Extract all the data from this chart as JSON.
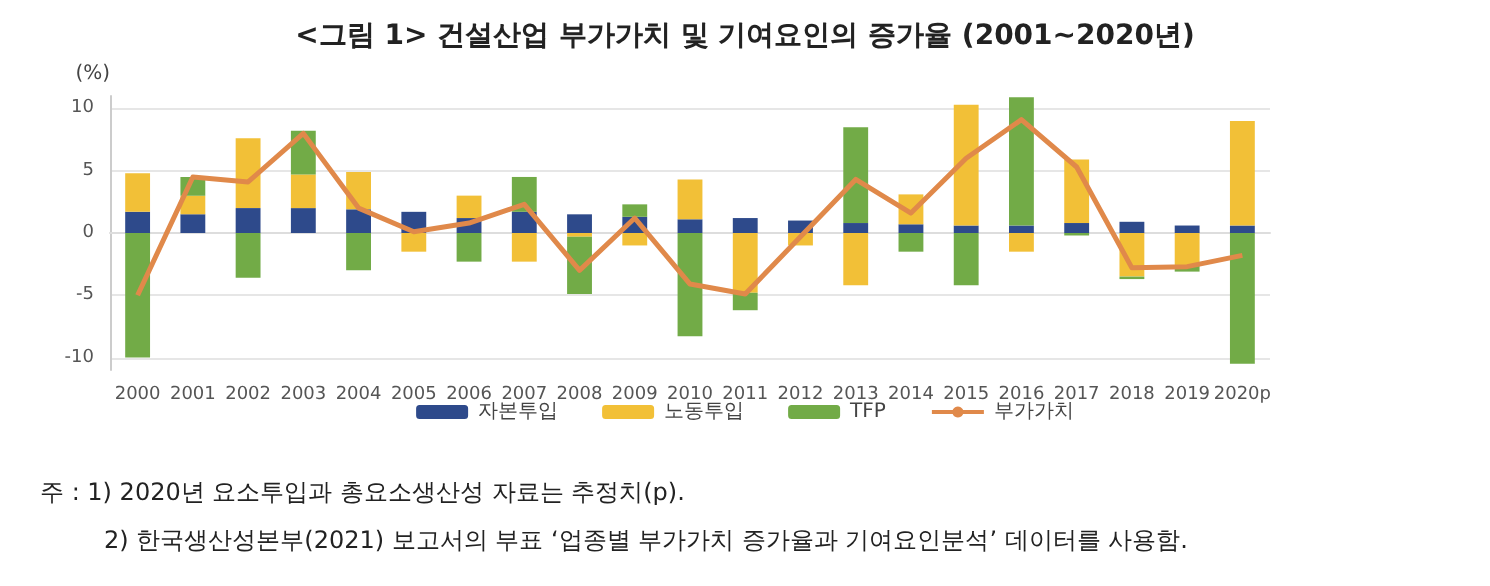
{
  "chart_data": {
    "type": "bar",
    "stacked": true,
    "title": "<그림 1> 건설산업 부가가치 및 기여요인의 증가율 (2001~2020년)",
    "ylabel": "(%)",
    "categories": [
      "2000",
      "2001",
      "2002",
      "2003",
      "2004",
      "2005",
      "2006",
      "2007",
      "2008",
      "2009",
      "2010",
      "2011",
      "2012",
      "2013",
      "2014",
      "2015",
      "2016",
      "2017",
      "2018",
      "2019",
      "2020p"
    ],
    "series": [
      {
        "name": "자본투입",
        "color": "#2e4a8b",
        "values": [
          1.7,
          1.5,
          2.0,
          2.0,
          1.9,
          1.7,
          1.2,
          1.7,
          1.5,
          1.3,
          1.1,
          1.2,
          1.0,
          0.8,
          0.7,
          0.6,
          0.6,
          0.8,
          0.9,
          0.6,
          0.6
        ]
      },
      {
        "name": "노동투입",
        "color": "#f2c037",
        "values": [
          3.1,
          1.5,
          5.6,
          2.7,
          3.0,
          -1.5,
          1.8,
          -2.3,
          -0.3,
          -1.0,
          3.2,
          -4.8,
          -1.0,
          -4.2,
          2.4,
          9.7,
          -1.5,
          5.1,
          -3.5,
          -2.6,
          8.4
        ]
      },
      {
        "name": "TFP",
        "color": "#72ab47",
        "values": [
          -10.0,
          1.5,
          -3.6,
          3.5,
          -3.0,
          null,
          -2.3,
          2.8,
          -4.6,
          1.0,
          -8.3,
          -1.4,
          null,
          7.7,
          -1.5,
          -4.2,
          10.3,
          -0.2,
          -0.2,
          -0.5,
          -10.5
        ]
      },
      {
        "name": "부가가치",
        "type": "line",
        "color": "#e0894a",
        "values": [
          -5.0,
          4.5,
          4.1,
          8.0,
          2.0,
          0.1,
          0.8,
          2.3,
          -3.0,
          1.2,
          -4.1,
          -4.9,
          -0.3,
          4.3,
          1.6,
          6.0,
          9.1,
          5.3,
          -2.8,
          -2.7,
          -1.8
        ]
      }
    ],
    "ylim": [
      -11,
      11
    ],
    "yticks": [
      -10,
      -5,
      0,
      5,
      10
    ],
    "grid": "y",
    "legend": "bottom",
    "marker": "none",
    "annotations": [
      "주 : 1) 2020년 요소투입과 총요소생산성 자료는 추정치(p).",
      "2) 한국생산성본부(2021) 보고서의 부표 ‘업종별 부가가치 증가율과 기여요인분석’ 데이터를 사용함."
    ]
  }
}
